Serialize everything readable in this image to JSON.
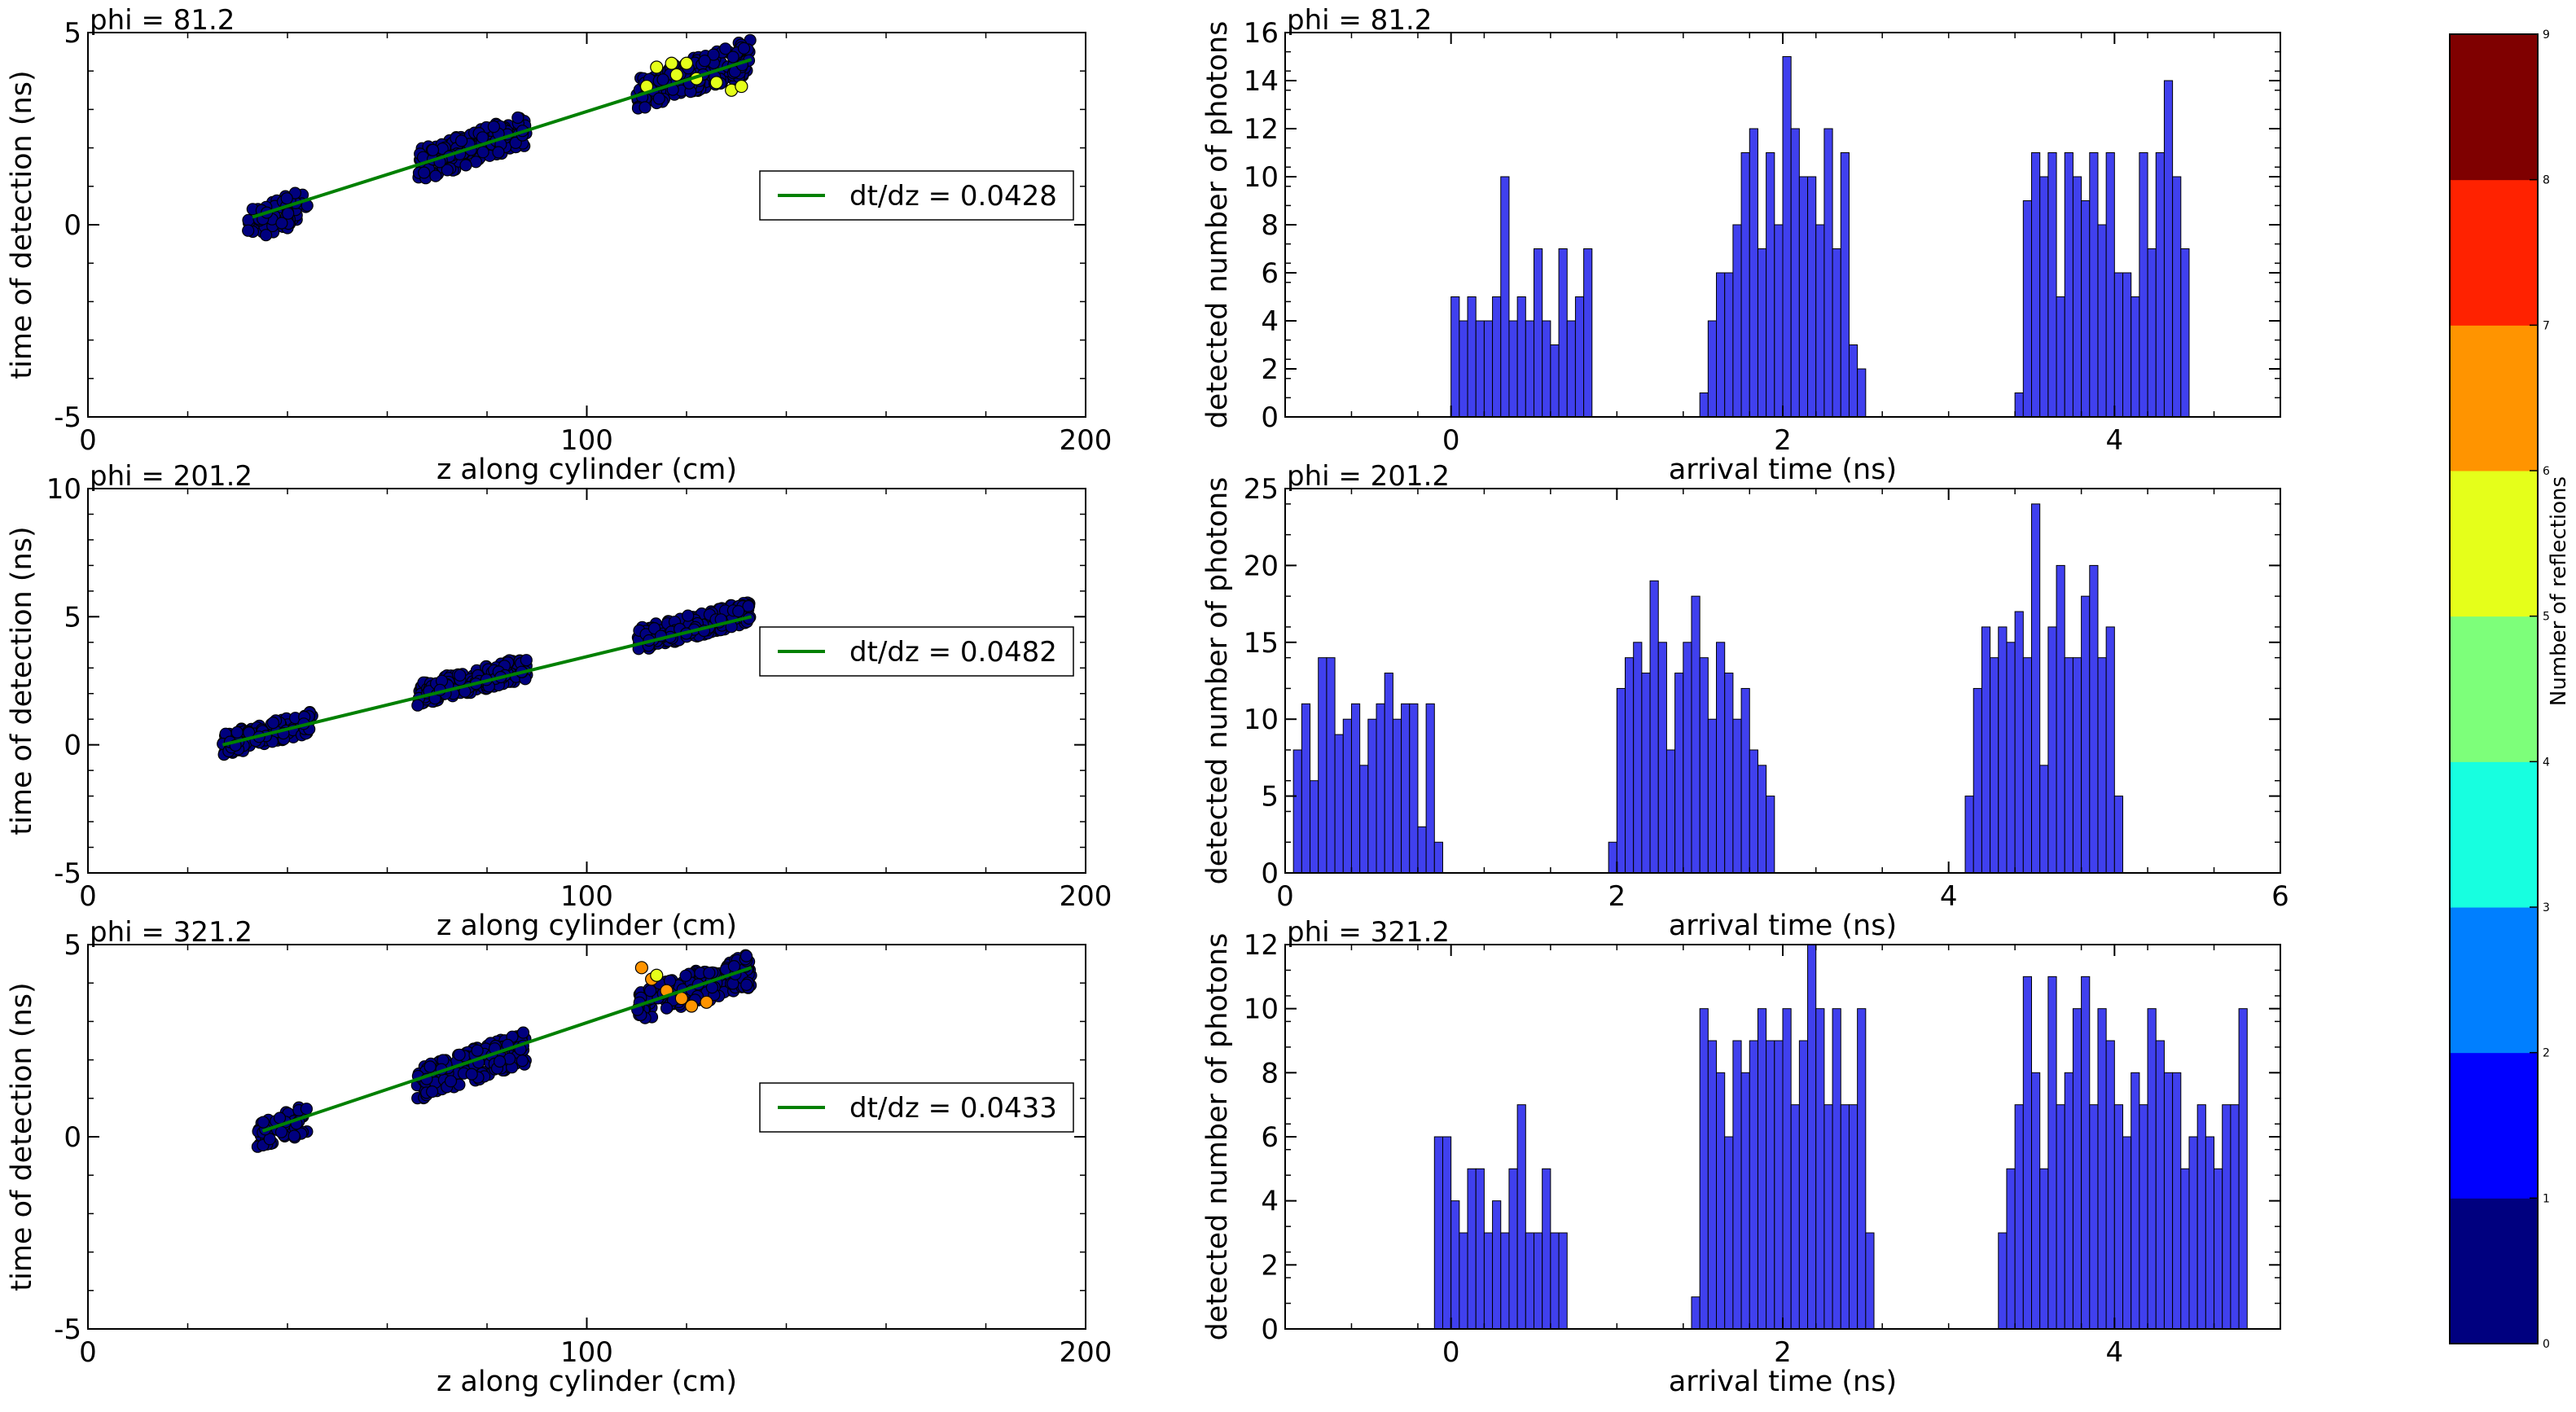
{
  "chart_data": [
    {
      "type": "scatter",
      "title": "phi = 81.2",
      "xlabel": "z along cylinder (cm)",
      "ylabel": "time of detection (ns)",
      "xlim": [
        0,
        200
      ],
      "ylim": [
        -5,
        5
      ],
      "xticks": [
        0,
        100,
        200
      ],
      "yticks": [
        -5,
        0,
        5
      ],
      "legend": {
        "label": "dt/dz = 0.0428",
        "placement": "right"
      },
      "fit_line": {
        "x": [
          33,
          133
        ],
        "y": [
          0.2,
          4.3
        ],
        "color": "#008000"
      },
      "clusters": [
        {
          "x": [
            32,
            44
          ],
          "y_center": 0.25,
          "slope": 0.0428,
          "height": 0.85,
          "n": 70,
          "color": "#00007f"
        },
        {
          "x": [
            66,
            88
          ],
          "y_center": 2.0,
          "slope": 0.0428,
          "height": 0.85,
          "n": 170,
          "color": "#00007f"
        },
        {
          "x": [
            110,
            133
          ],
          "y_center": 3.9,
          "slope": 0.0428,
          "height": 0.9,
          "n": 190,
          "color": "#00007f"
        }
      ],
      "highlights": [
        {
          "x": 114,
          "y": 4.1,
          "color": "#e5ff1a"
        },
        {
          "x": 117,
          "y": 4.2,
          "color": "#e5ff1a"
        },
        {
          "x": 118,
          "y": 3.9,
          "color": "#e5ff1a"
        },
        {
          "x": 120,
          "y": 4.2,
          "color": "#e5ff1a"
        },
        {
          "x": 122,
          "y": 3.8,
          "color": "#e5ff1a"
        },
        {
          "x": 126,
          "y": 3.7,
          "color": "#e5ff1a"
        },
        {
          "x": 129,
          "y": 3.5,
          "color": "#e5ff1a"
        },
        {
          "x": 131,
          "y": 3.6,
          "color": "#e5ff1a"
        },
        {
          "x": 112,
          "y": 3.6,
          "color": "#e5ff1a"
        }
      ]
    },
    {
      "type": "bar",
      "title": "phi = 81.2",
      "xlabel": "arrival time (ns)",
      "ylabel": "detected number of photons",
      "xlim": [
        -1,
        5
      ],
      "ylim": [
        0,
        16
      ],
      "xticks": [
        0,
        2,
        4
      ],
      "yticks": [
        0,
        2,
        4,
        6,
        8,
        10,
        12,
        14,
        16
      ],
      "bin_width": 0.05,
      "groups": [
        {
          "start": 0.0,
          "values": [
            5,
            4,
            5,
            4,
            4,
            5,
            10,
            4,
            5,
            4,
            7,
            4,
            3,
            7,
            4,
            5,
            7
          ]
        },
        {
          "start": 1.5,
          "values": [
            1,
            4,
            6,
            6,
            8,
            11,
            12,
            7,
            11,
            8,
            15,
            12,
            10,
            10,
            8,
            12,
            7,
            11,
            3,
            2
          ]
        },
        {
          "start": 3.4,
          "values": [
            1,
            9,
            11,
            10,
            11,
            5,
            11,
            10,
            9,
            11,
            8,
            11,
            6,
            6,
            5,
            11,
            7,
            11,
            14,
            10,
            7
          ]
        }
      ],
      "color": "#4040ee"
    },
    {
      "type": "scatter",
      "title": "phi = 201.2",
      "xlabel": "z along cylinder (cm)",
      "ylabel": "time of detection (ns)",
      "xlim": [
        0,
        200
      ],
      "ylim": [
        -5,
        10
      ],
      "xticks": [
        0,
        100,
        200
      ],
      "yticks": [
        -5,
        0,
        5,
        10
      ],
      "legend": {
        "label": "dt/dz = 0.0482",
        "placement": "right"
      },
      "fit_line": {
        "x": [
          27,
          133
        ],
        "y": [
          0.0,
          5.0
        ],
        "color": "#008000"
      },
      "clusters": [
        {
          "x": [
            27,
            45
          ],
          "y_center": 0.45,
          "slope": 0.0482,
          "height": 0.9,
          "n": 140,
          "color": "#00007f"
        },
        {
          "x": [
            66,
            88
          ],
          "y_center": 2.5,
          "slope": 0.0482,
          "height": 0.9,
          "n": 190,
          "color": "#00007f"
        },
        {
          "x": [
            110,
            133
          ],
          "y_center": 4.65,
          "slope": 0.0482,
          "height": 0.9,
          "n": 200,
          "color": "#00007f"
        }
      ],
      "highlights": []
    },
    {
      "type": "bar",
      "title": "phi = 201.2",
      "xlabel": "arrival time (ns)",
      "ylabel": "detected number of photons",
      "xlim": [
        0,
        6
      ],
      "ylim": [
        0,
        25
      ],
      "xticks": [
        0,
        2,
        4,
        6
      ],
      "yticks": [
        0,
        5,
        10,
        15,
        20,
        25
      ],
      "bin_width": 0.05,
      "groups": [
        {
          "start": 0.05,
          "values": [
            8,
            11,
            6,
            14,
            14,
            9,
            10,
            11,
            7,
            10,
            11,
            13,
            10,
            11,
            11,
            3,
            11,
            2
          ]
        },
        {
          "start": 1.95,
          "values": [
            2,
            12,
            14,
            15,
            13,
            19,
            15,
            8,
            13,
            15,
            18,
            14,
            10,
            15,
            13,
            10,
            12,
            8,
            7,
            5
          ]
        },
        {
          "start": 4.1,
          "values": [
            5,
            12,
            16,
            14,
            16,
            15,
            17,
            14,
            24,
            7,
            16,
            20,
            14,
            14,
            18,
            20,
            14,
            16,
            5
          ]
        }
      ],
      "color": "#4040ee"
    },
    {
      "type": "scatter",
      "title": "phi = 321.2",
      "xlabel": "z along cylinder (cm)",
      "ylabel": "time of detection (ns)",
      "xlim": [
        0,
        200
      ],
      "ylim": [
        -5,
        5
      ],
      "xticks": [
        0,
        100,
        200
      ],
      "yticks": [
        -5,
        0,
        5
      ],
      "legend": {
        "label": "dt/dz = 0.0433",
        "placement": "right"
      },
      "fit_line": {
        "x": [
          35,
          133
        ],
        "y": [
          0.15,
          4.4
        ],
        "color": "#008000"
      },
      "clusters": [
        {
          "x": [
            34,
            44
          ],
          "y_center": 0.25,
          "slope": 0.0433,
          "height": 0.8,
          "n": 60,
          "color": "#00007f"
        },
        {
          "x": [
            66,
            88
          ],
          "y_center": 1.85,
          "slope": 0.0433,
          "height": 0.85,
          "n": 170,
          "color": "#00007f"
        },
        {
          "x": [
            110,
            133
          ],
          "y_center": 3.85,
          "slope": 0.0433,
          "height": 0.9,
          "n": 190,
          "color": "#00007f"
        }
      ],
      "highlights": [
        {
          "x": 113,
          "y": 4.1,
          "color": "#ff9400"
        },
        {
          "x": 111,
          "y": 4.4,
          "color": "#ff9400"
        },
        {
          "x": 116,
          "y": 3.8,
          "color": "#ff9400"
        },
        {
          "x": 119,
          "y": 3.6,
          "color": "#ff9400"
        },
        {
          "x": 124,
          "y": 3.5,
          "color": "#ff9400"
        },
        {
          "x": 114,
          "y": 4.2,
          "color": "#e5ff1a"
        },
        {
          "x": 121,
          "y": 3.4,
          "color": "#ff9400"
        }
      ]
    },
    {
      "type": "bar",
      "title": "phi = 321.2",
      "xlabel": "arrival time (ns)",
      "ylabel": "detected number of photons",
      "xlim": [
        -1,
        5
      ],
      "ylim": [
        0,
        12
      ],
      "xticks": [
        0,
        2,
        4
      ],
      "yticks": [
        0,
        2,
        4,
        6,
        8,
        10,
        12
      ],
      "bin_width": 0.05,
      "groups": [
        {
          "start": -0.1,
          "values": [
            6,
            6,
            4,
            3,
            5,
            5,
            3,
            4,
            3,
            5,
            7,
            3,
            3,
            5,
            3,
            3
          ]
        },
        {
          "start": 1.45,
          "values": [
            1,
            10,
            9,
            8,
            6,
            9,
            8,
            9,
            10,
            9,
            9,
            10,
            7,
            9,
            12,
            10,
            7,
            10,
            7,
            7,
            10,
            3
          ]
        },
        {
          "start": 3.3,
          "values": [
            3,
            5,
            7,
            11,
            8,
            5,
            11,
            7,
            8,
            10,
            11,
            7,
            10,
            9,
            7,
            6,
            8,
            7,
            10,
            9,
            8,
            8,
            5,
            6,
            7,
            6,
            5,
            7,
            7,
            10
          ]
        }
      ],
      "color": "#4040ee"
    }
  ],
  "colorbar": {
    "label": "Number of reflections",
    "ticks": [
      "0",
      "1",
      "2",
      "3",
      "4",
      "5",
      "6",
      "7",
      "8",
      "9"
    ],
    "colors": [
      "#00007f",
      "#0000ff",
      "#007fff",
      "#17ffe0",
      "#7dff7a",
      "#e5ff1a",
      "#ff9400",
      "#ff2200",
      "#7f0000"
    ]
  }
}
